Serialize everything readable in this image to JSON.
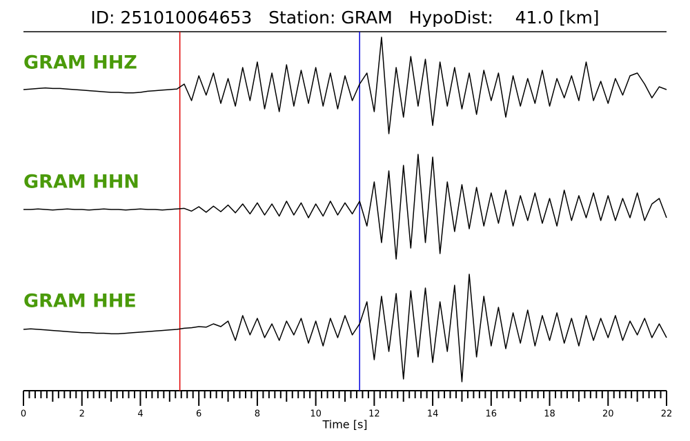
{
  "chart_data": {
    "type": "line",
    "title": "ID: 251010064653   Station: GRAM   HypoDist:    41.0 [km]",
    "xlabel": "Time [s]",
    "xlim": [
      0,
      22
    ],
    "xticks": [
      0,
      2,
      4,
      6,
      8,
      10,
      12,
      14,
      16,
      18,
      20,
      22
    ],
    "ylim": [
      -1.1,
      1.1
    ],
    "label_color": "#4a9a0a",
    "x": [
      0,
      0.25,
      0.5,
      0.75,
      1,
      1.25,
      1.5,
      1.75,
      2,
      2.25,
      2.5,
      2.75,
      3,
      3.25,
      3.5,
      3.75,
      4,
      4.25,
      4.5,
      4.75,
      5,
      5.25,
      5.5,
      5.75,
      6,
      6.25,
      6.5,
      6.75,
      7,
      7.25,
      7.5,
      7.75,
      8,
      8.25,
      8.5,
      8.75,
      9,
      9.25,
      9.5,
      9.75,
      10,
      10.25,
      10.5,
      10.75,
      11,
      11.25,
      11.5,
      11.75,
      12,
      12.25,
      12.5,
      12.75,
      13,
      13.25,
      13.5,
      13.75,
      14,
      14.25,
      14.5,
      14.75,
      15,
      15.25,
      15.5,
      15.75,
      16,
      16.25,
      16.5,
      16.75,
      17,
      17.25,
      17.5,
      17.75,
      18,
      18.25,
      18.5,
      18.75,
      19,
      19.25,
      19.5,
      19.75,
      20,
      20.25,
      20.5,
      20.75,
      21,
      21.25,
      21.5,
      21.75,
      22
    ],
    "series": [
      {
        "name": "GRAM HHZ",
        "color": "#000000",
        "values": [
          0,
          0.01,
          0.02,
          0.03,
          0.02,
          0.02,
          0.01,
          0,
          -0.01,
          -0.02,
          -0.03,
          -0.04,
          -0.05,
          -0.05,
          -0.06,
          -0.06,
          -0.05,
          -0.03,
          -0.02,
          -0.01,
          0,
          0.01,
          0.1,
          -0.2,
          0.25,
          -0.1,
          0.3,
          -0.25,
          0.2,
          -0.3,
          0.4,
          -0.2,
          0.5,
          -0.35,
          0.3,
          -0.4,
          0.45,
          -0.3,
          0.35,
          -0.25,
          0.4,
          -0.3,
          0.3,
          -0.35,
          0.25,
          -0.2,
          0.1,
          0.3,
          -0.4,
          0.95,
          -0.8,
          0.4,
          -0.5,
          0.6,
          -0.3,
          0.55,
          -0.65,
          0.5,
          -0.3,
          0.4,
          -0.35,
          0.3,
          -0.45,
          0.35,
          -0.2,
          0.3,
          -0.5,
          0.25,
          -0.3,
          0.2,
          -0.25,
          0.35,
          -0.3,
          0.2,
          -0.15,
          0.25,
          -0.2,
          0.5,
          -0.2,
          0.15,
          -0.25,
          0.2,
          -0.1,
          0.25,
          0.3,
          0.1,
          -0.15,
          0.05,
          0.0
        ]
      },
      {
        "name": "GRAM HHN",
        "color": "#000000",
        "values": [
          0,
          0,
          0.01,
          0,
          -0.01,
          0,
          0.01,
          0,
          0,
          -0.01,
          0,
          0.01,
          0,
          0,
          -0.01,
          0,
          0.01,
          0,
          0,
          -0.01,
          0,
          0.01,
          0.02,
          -0.03,
          0.05,
          -0.05,
          0.06,
          -0.04,
          0.08,
          -0.06,
          0.1,
          -0.08,
          0.12,
          -0.1,
          0.1,
          -0.12,
          0.15,
          -0.1,
          0.12,
          -0.15,
          0.1,
          -0.12,
          0.15,
          -0.1,
          0.12,
          -0.08,
          0.15,
          -0.3,
          0.5,
          -0.6,
          0.7,
          -0.9,
          0.8,
          -0.7,
          1.0,
          -0.6,
          0.95,
          -0.8,
          0.5,
          -0.4,
          0.45,
          -0.35,
          0.4,
          -0.3,
          0.3,
          -0.25,
          0.35,
          -0.3,
          0.25,
          -0.2,
          0.3,
          -0.25,
          0.2,
          -0.3,
          0.35,
          -0.2,
          0.25,
          -0.15,
          0.3,
          -0.2,
          0.25,
          -0.2,
          0.2,
          -0.15,
          0.3,
          -0.2,
          0.1,
          0.2,
          -0.15
        ]
      },
      {
        "name": "GRAM HHE",
        "color": "#000000",
        "values": [
          0,
          0.01,
          0,
          -0.01,
          -0.02,
          -0.03,
          -0.04,
          -0.05,
          -0.06,
          -0.06,
          -0.07,
          -0.07,
          -0.08,
          -0.08,
          -0.07,
          -0.06,
          -0.05,
          -0.04,
          -0.03,
          -0.02,
          -0.01,
          0,
          0.02,
          0.03,
          0.05,
          0.04,
          0.1,
          0.05,
          0.15,
          -0.2,
          0.25,
          -0.1,
          0.2,
          -0.15,
          0.1,
          -0.2,
          0.15,
          -0.1,
          0.2,
          -0.25,
          0.15,
          -0.3,
          0.2,
          -0.15,
          0.25,
          -0.1,
          0.1,
          0.5,
          -0.55,
          0.6,
          -0.4,
          0.65,
          -0.9,
          0.7,
          -0.5,
          0.75,
          -0.6,
          0.5,
          -0.4,
          0.8,
          -0.95,
          1.0,
          -0.5,
          0.6,
          -0.3,
          0.4,
          -0.35,
          0.3,
          -0.25,
          0.35,
          -0.3,
          0.25,
          -0.2,
          0.3,
          -0.25,
          0.2,
          -0.3,
          0.25,
          -0.2,
          0.2,
          -0.15,
          0.25,
          -0.2,
          0.15,
          -0.1,
          0.2,
          -0.15,
          0.1,
          -0.15
        ]
      }
    ],
    "vlines": [
      {
        "x": 5.35,
        "color": "#e00000"
      },
      {
        "x": 11.5,
        "color": "#0000dd"
      }
    ]
  }
}
